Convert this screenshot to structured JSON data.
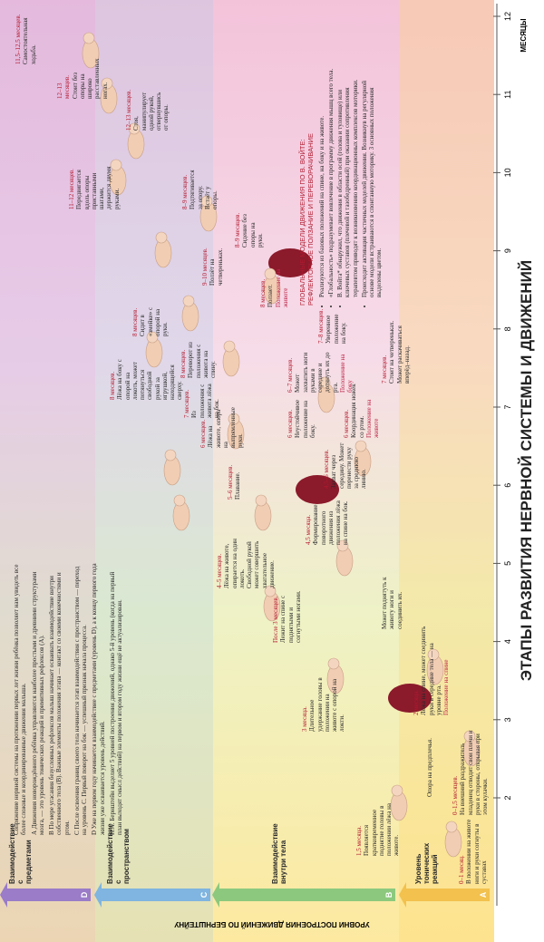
{
  "title": "ЭТАПЫ РАЗВИТИЯ НЕРВНОЙ СИСТЕМЫ И ДВИЖЕНИЙ",
  "side_label": "УРОВНИ ПОСТРОЕНИЯ ДВИЖЕНИЙ ПО БЕРНШТЕЙНУ",
  "months": {
    "label": "МЕСЯЦЫ",
    "ticks": [
      2,
      3,
      4,
      5,
      6,
      7,
      8,
      9,
      10,
      11,
      12
    ]
  },
  "levels": [
    {
      "letter": "D",
      "label": "Взаимодействие с предметами"
    },
    {
      "letter": "C",
      "label": "Взаимодействие с пространством"
    },
    {
      "letter": "B",
      "label": "Взаимодействие внутри тела"
    },
    {
      "letter": "A",
      "label": "Уровень тонических реакций"
    }
  ],
  "intro": [
    "Сопряжение нервной системы на протяжении первых лет жизни ребёнка позволяет нам увидеть все более сложные и координированные движения малыша.",
    "А Движения новорождённого ребёнка управляются наиболее простыми и древними структурами мозга, — это уровень тонических реакций и примитивных рефлексов (А).",
    "В По мере угасания безусловных рефлексов малыш начинает осваивать взаимодействие внутри собственного тела (В). Важные элементы положения этапа — контакт со своими конечностями и ртом.",
    "С После освоения границ своего тела начинается этап взаимодействия с пространством — переход на уровень С. Первый поворот на бок — успешный признак начала процесса.",
    "D Уже на первом году начинается взаимодействие с предметами (уровень D), а к концу первого года жизни уже осваивается уровень действий.",
    "Н.А. Бернштейн выделяет 5 уровней построения движений, однако 5-й уровень (когда на первый план выходят смысл действий) на первом и втором году жизни ещё не актуализирован."
  ],
  "vojta": {
    "title": "ГЛОБАЛЬНЫЕ МОДЕЛИ ДВИЖЕНИЯ ПО В. ВОЙТЕ:",
    "subtitle": "РЕФЛЕКТОРНОЕ ПОЛЗАНИЕ И ПЕРЕВОРАЧИВАНИЕ",
    "items": [
      "Реализуются из базовых положений на спине, на боку и на животе.",
      "«Глобальность» подразумевает вовлечение в программу движения мышц всего тела.",
      "В. Войта* обнаружил, что движения в области осей (голова и туловище) или ключевых суставов (плечевой и тазобедренный) при оказании сопротивления терапевтом приводят к возникновению координационных комплексов моторики.",
      "Происходит активация частичных моделей движения. Возникнув на регулярной основе модели встраиваются в спонтанную моторику. 3 основных положения выделены цветом."
    ]
  },
  "milestones": [
    {
      "age": "0–1 месяц.",
      "text": "В положении на животе ноги и руки согнуты в суставах"
    },
    {
      "age": "0–1,5 месяцев.",
      "text": "На внешний раздражитель младенец отводит свои плечи и руки в стороны, открывая при этом кулачки."
    },
    {
      "age": "1,5 месяца.",
      "text": "Появляется кратковременное поднятие головы в положении лёжа на животе."
    },
    {
      "text": "Опора на предплечья."
    },
    {
      "age": "2 месяца.",
      "text": "Лёжа на спине, может соединить руки в середине тела — на уровне рта.",
      "note": "Положение на спине"
    },
    {
      "age": "3 месяца.",
      "text": "Длительное удержание головы в положении на животе с опорой на локти."
    },
    {
      "age": "После 3 месяцев.",
      "text": "Лежит на спине с поднятыми и согнутыми ногами."
    },
    {
      "text": "Может поднятуть к животу ноги и соединить их."
    },
    {
      "age": "4–5 месяцев.",
      "text": "Лёжа на животе, опирается на один локоть. Свободной рукой может совершить хватательное движение."
    },
    {
      "age": "4,5 месяца.",
      "text": "Формирование поворотного движения из положения лёжа на спине на бок."
    },
    {
      "age": "5–6 месяцев.",
      "text": "Плавание."
    },
    {
      "age": "4,5–6 месяцев.",
      "text": "Захват через середину. Может перенести руку за среднюю линию."
    },
    {
      "age": "6 месяцев.",
      "text": "Лёжа на животе, опора на выпрямленные руки."
    },
    {
      "age": "7 месяцев.",
      "text": "Из положения с живота лёжа на бок."
    },
    {
      "age": "8 месяцев.",
      "text": "Переворот из положения с живота на спину."
    },
    {
      "age": "6 месяцев.",
      "text": "Неустойчивое положение на боку."
    },
    {
      "age": "6 месяцев.",
      "text": "Координация ножек со ртом.",
      "note": "Положение на животе"
    },
    {
      "age": "6–7 месяцев.",
      "text": "Может захватить ноги руками в середине и дотянуть их до рта.",
      "note": "Положение на боку"
    },
    {
      "age": "7–8 месяцев.",
      "text": "Уверенное положение на боку."
    },
    {
      "age": "7 месяцев.",
      "text": "Стоит на четвереньках. Может раскачиваться вперёд–назад."
    },
    {
      "age": "8 месяцев.",
      "text": "Лёжа на боку с опорой на локоть, может потянуться свободной рукой за игрушкой, находящейся сверху."
    },
    {
      "age": "8 месяцев.",
      "text": "Сидит в «змейке» с опорой на руки."
    },
    {
      "age": "8 месяцев.",
      "text": "Ползает.",
      "note": "Положение на животе"
    },
    {
      "age": "9–10 месяцев.",
      "text": "Ползёт на четвереньках."
    },
    {
      "age": "8–9 месяцев.",
      "text": "Сидение без опоры на руки."
    },
    {
      "age": "8–9 месяцев.",
      "text": "Подтягивается за опору. Встаёт у опоры."
    },
    {
      "age": "11–12 месяцев.",
      "text": "Передвигается вдоль опоры приставными шагами, держится двумя руками."
    },
    {
      "age": "12–13 месяцев.",
      "text": "Стоя, манипулирует одной рукой, отвернувшись от опоры."
    },
    {
      "age": "12–13 месяцев.",
      "text": "Стоит без опоры на широко расставленных ногах."
    },
    {
      "age": "11,5–12,5 месяцев.",
      "text": "Самостоятельная ходьба."
    }
  ]
}
